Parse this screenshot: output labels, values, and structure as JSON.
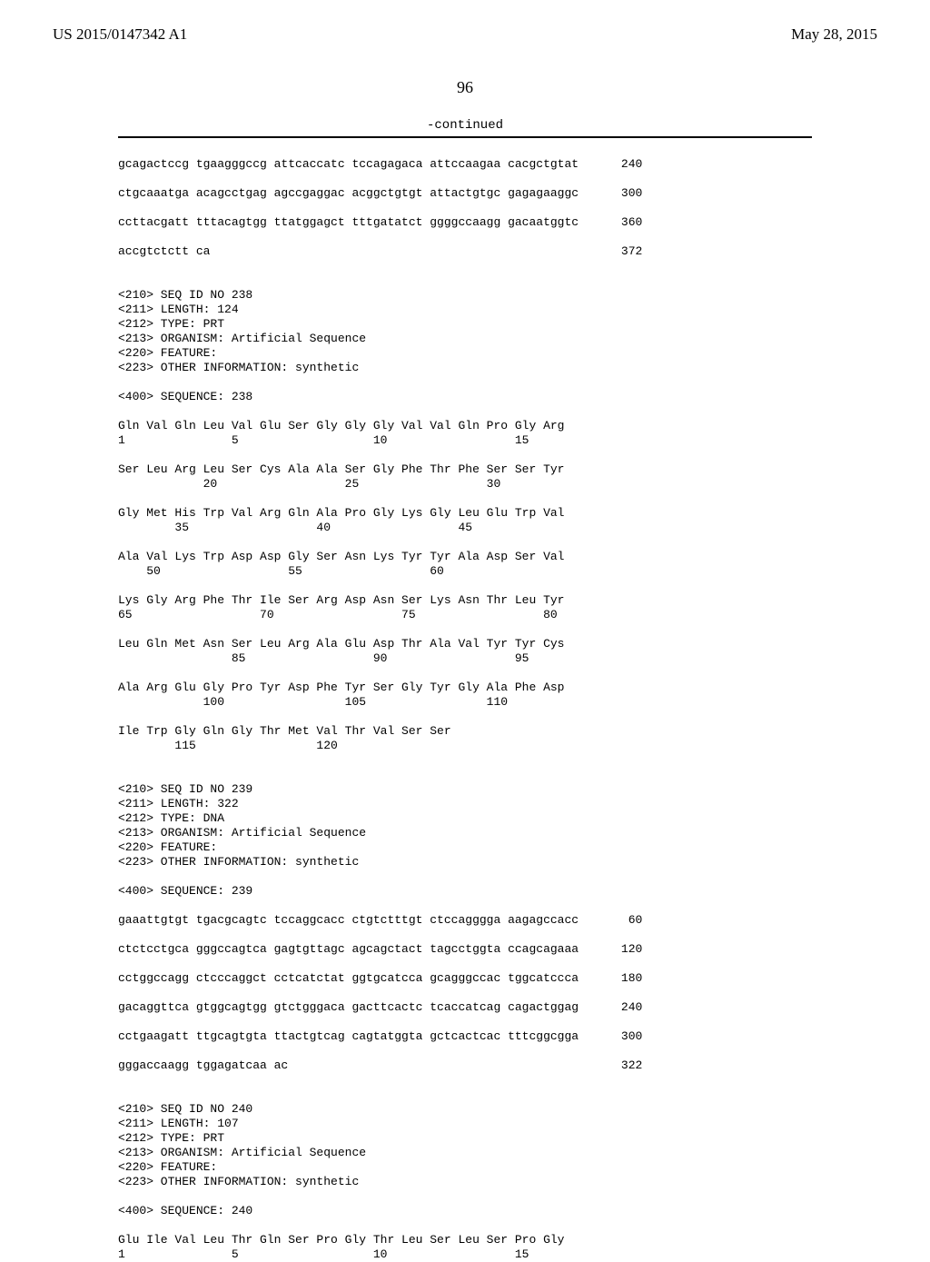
{
  "header": {
    "pub_number": "US 2015/0147342 A1",
    "pub_date": "May 28, 2015",
    "page_number": "96",
    "continued": "-continued"
  },
  "body": {
    "sequence_text": "gcagactccg tgaagggccg attcaccatc tccagagaca attccaagaa cacgctgtat      240\n\nctgcaaatga acagcctgag agccgaggac acggctgtgt attactgtgc gagagaaggc      300\n\nccttacgatt tttacagtgg ttatggagct tttgatatct ggggccaagg gacaatggtc      360\n\naccgtctctt ca                                                          372\n\n\n<210> SEQ ID NO 238\n<211> LENGTH: 124\n<212> TYPE: PRT\n<213> ORGANISM: Artificial Sequence\n<220> FEATURE:\n<223> OTHER INFORMATION: synthetic\n\n<400> SEQUENCE: 238\n\nGln Val Gln Leu Val Glu Ser Gly Gly Gly Val Val Gln Pro Gly Arg\n1               5                   10                  15\n\nSer Leu Arg Leu Ser Cys Ala Ala Ser Gly Phe Thr Phe Ser Ser Tyr\n            20                  25                  30\n\nGly Met His Trp Val Arg Gln Ala Pro Gly Lys Gly Leu Glu Trp Val\n        35                  40                  45\n\nAla Val Lys Trp Asp Asp Gly Ser Asn Lys Tyr Tyr Ala Asp Ser Val\n    50                  55                  60\n\nLys Gly Arg Phe Thr Ile Ser Arg Asp Asn Ser Lys Asn Thr Leu Tyr\n65                  70                  75                  80\n\nLeu Gln Met Asn Ser Leu Arg Ala Glu Asp Thr Ala Val Tyr Tyr Cys\n                85                  90                  95\n\nAla Arg Glu Gly Pro Tyr Asp Phe Tyr Ser Gly Tyr Gly Ala Phe Asp\n            100                 105                 110\n\nIle Trp Gly Gln Gly Thr Met Val Thr Val Ser Ser\n        115                 120\n\n\n<210> SEQ ID NO 239\n<211> LENGTH: 322\n<212> TYPE: DNA\n<213> ORGANISM: Artificial Sequence\n<220> FEATURE:\n<223> OTHER INFORMATION: synthetic\n\n<400> SEQUENCE: 239\n\ngaaattgtgt tgacgcagtc tccaggcacc ctgtctttgt ctccagggga aagagccacc       60\n\nctctcctgca gggccagtca gagtgttagc agcagctact tagcctggta ccagcagaaa      120\n\ncctggccagg ctcccaggct cctcatctat ggtgcatcca gcagggccac tggcatccca      180\n\ngacaggttca gtggcagtgg gtctgggaca gacttcactc tcaccatcag cagactggag      240\n\ncctgaagatt ttgcagtgta ttactgtcag cagtatggta gctcactcac tttcggcgga      300\n\ngggaccaagg tggagatcaa ac                                               322\n\n\n<210> SEQ ID NO 240\n<211> LENGTH: 107\n<212> TYPE: PRT\n<213> ORGANISM: Artificial Sequence\n<220> FEATURE:\n<223> OTHER INFORMATION: synthetic\n\n<400> SEQUENCE: 240\n\nGlu Ile Val Leu Thr Gln Ser Pro Gly Thr Leu Ser Leu Ser Pro Gly\n1               5                   10                  15"
  }
}
